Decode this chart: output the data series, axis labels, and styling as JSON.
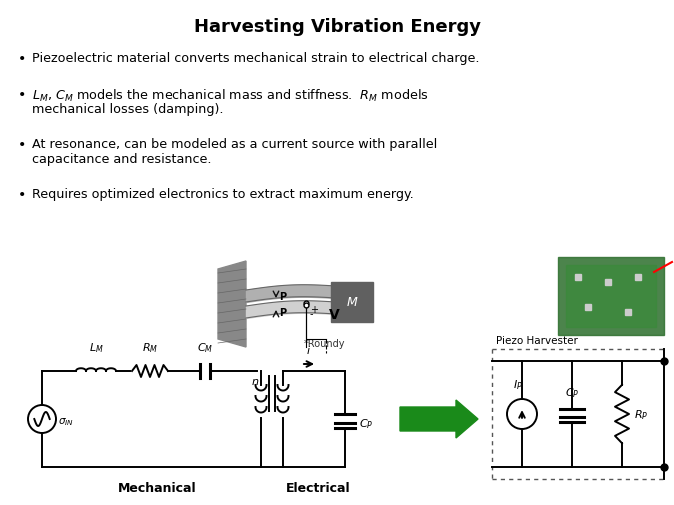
{
  "title": "Harvesting Vibration Energy",
  "title_fontsize": 13,
  "background_color": "#ffffff",
  "text_color": "#000000",
  "circuit_color": "#000000",
  "arrow_color": "#1a8a1a",
  "label_Mechanical": "Mechanical",
  "label_Electrical": "Electrical",
  "label_PiezoHarvester": "Piezo Harvester",
  "label_roundy": "*Roundy",
  "bullet1": "Piezoelectric material converts mechanical strain to electrical charge.",
  "bullet2a": "$L_M$, $C_M$ models the mechanical mass and stiffness.  $R_M$ models",
  "bullet2b": "mechanical losses (damping).",
  "bullet3a": "At resonance, can be modeled as a current source with parallel",
  "bullet3b": "capacitance and resistance.",
  "bullet4": "Requires optimized electronics to extract maximum energy.",
  "fig_width": 6.74,
  "fig_height": 5.06,
  "dpi": 100
}
